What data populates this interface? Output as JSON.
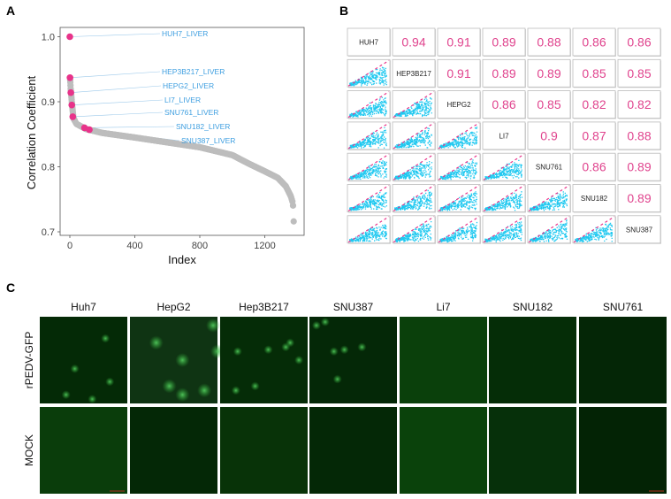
{
  "panels": {
    "a": "A",
    "b": "B",
    "c": "C"
  },
  "chart_data": [
    {
      "type": "scatter",
      "panel": "A",
      "xlabel": "Index",
      "ylabel": "Correlation Coefficient",
      "xlim": [
        0,
        1380
      ],
      "ylim": [
        0.7,
        1.0
      ],
      "xticks": [
        "0",
        "400",
        "800",
        "1200"
      ],
      "yticks": [
        "0.7",
        "0.8",
        "0.9",
        "1.0"
      ],
      "grid": false,
      "colors": {
        "background_points": "#bdbdbd",
        "highlight_points": "#e8338a",
        "labels": "#3f9fe0"
      },
      "sorted_curve": [
        [
          0,
          1.0
        ],
        [
          1,
          0.937
        ],
        [
          3,
          0.93
        ],
        [
          5,
          0.92
        ],
        [
          8,
          0.913
        ],
        [
          12,
          0.9
        ],
        [
          18,
          0.885
        ],
        [
          22,
          0.875
        ],
        [
          40,
          0.866
        ],
        [
          100,
          0.858
        ],
        [
          200,
          0.852
        ],
        [
          400,
          0.845
        ],
        [
          800,
          0.83
        ],
        [
          1000,
          0.818
        ],
        [
          1100,
          0.805
        ],
        [
          1200,
          0.793
        ],
        [
          1280,
          0.783
        ],
        [
          1330,
          0.77
        ],
        [
          1360,
          0.755
        ],
        [
          1372,
          0.745
        ],
        [
          1375,
          0.738
        ],
        [
          1378,
          0.716
        ],
        [
          1380,
          0.709
        ]
      ],
      "highlighted": [
        {
          "label": "HUH7_LIVER",
          "x": 0,
          "y": 1.0
        },
        {
          "label": "HEP3B217_LIVER",
          "x": 1,
          "y": 0.937
        },
        {
          "label": "HEPG2_LIVER",
          "x": 6,
          "y": 0.914
        },
        {
          "label": "LI7_LIVER",
          "x": 12,
          "y": 0.895
        },
        {
          "label": "SNU761_LIVER",
          "x": 18,
          "y": 0.877
        },
        {
          "label": "SNU182_LIVER",
          "x": 90,
          "y": 0.86
        },
        {
          "label": "SNU387_LIVER",
          "x": 120,
          "y": 0.857
        }
      ]
    },
    {
      "type": "heatmap",
      "panel": "B",
      "names": [
        "HUH7",
        "HEP3B217",
        "HEPG2",
        "LI7",
        "SNU761",
        "SNU182",
        "SNU387"
      ],
      "upper_values": [
        [
          "0.94",
          "0.91",
          "0.89",
          "0.88",
          "0.86",
          "0.86"
        ],
        [
          "0.91",
          "0.89",
          "0.89",
          "0.85",
          "0.85"
        ],
        [
          "0.86",
          "0.85",
          "0.82",
          "0.82"
        ],
        [
          "0.9",
          "0.87",
          "0.88"
        ],
        [
          "0.86",
          "0.89"
        ],
        [
          "0.89"
        ]
      ],
      "lower_cells": "pairwise scatter",
      "colors": {
        "values": "#e0448e",
        "scatter": "#1ec8f0",
        "fit_line": "#e8338a"
      }
    }
  ],
  "panel_c": {
    "columns": [
      "Huh7",
      "HepG2",
      "Hep3B217",
      "SNU387",
      "Li7",
      "SNU182",
      "SNU761"
    ],
    "rows": [
      "rPEDV-GFP",
      "MOCK"
    ]
  }
}
